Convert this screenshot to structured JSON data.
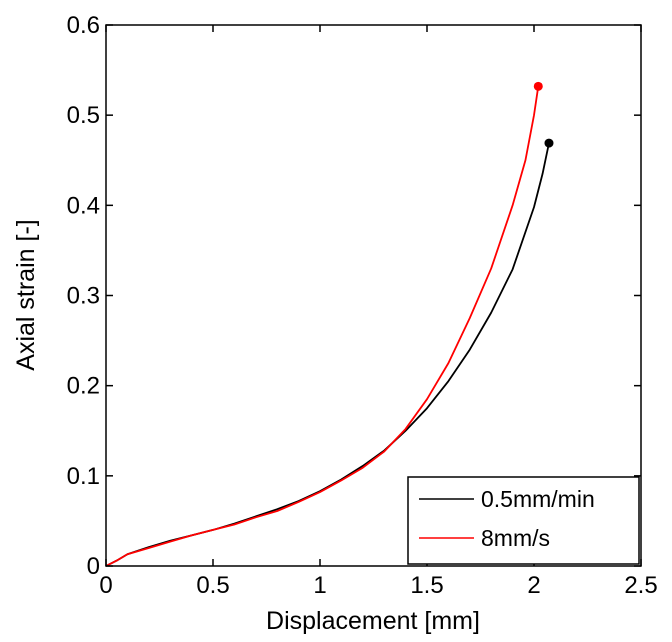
{
  "chart_data": {
    "type": "line",
    "title": "",
    "xlabel": "Displacement [mm]",
    "ylabel": "Axial strain [-]",
    "xlim": [
      0,
      2.5
    ],
    "ylim": [
      0,
      0.6
    ],
    "xticks": [
      "0",
      "0.5",
      "1",
      "1.5",
      "2",
      "2.5"
    ],
    "yticks": [
      "0",
      "0.1",
      "0.2",
      "0.3",
      "0.4",
      "0.5",
      "0.6"
    ],
    "grid": false,
    "legend_position": "bottom-right",
    "series": [
      {
        "name": "0.5mm/min",
        "color": "#000000",
        "endpoint_marker": true,
        "points": [
          [
            0,
            0
          ],
          [
            0.05,
            0.006
          ],
          [
            0.1,
            0.013
          ],
          [
            0.2,
            0.021
          ],
          [
            0.3,
            0.028
          ],
          [
            0.4,
            0.034
          ],
          [
            0.5,
            0.04
          ],
          [
            0.6,
            0.047
          ],
          [
            0.7,
            0.055
          ],
          [
            0.8,
            0.063
          ],
          [
            0.9,
            0.072
          ],
          [
            1.0,
            0.083
          ],
          [
            1.1,
            0.096
          ],
          [
            1.2,
            0.111
          ],
          [
            1.3,
            0.128
          ],
          [
            1.4,
            0.15
          ],
          [
            1.5,
            0.175
          ],
          [
            1.6,
            0.205
          ],
          [
            1.7,
            0.24
          ],
          [
            1.8,
            0.281
          ],
          [
            1.9,
            0.329
          ],
          [
            2.0,
            0.398
          ],
          [
            2.04,
            0.435
          ],
          [
            2.07,
            0.469
          ]
        ]
      },
      {
        "name": "8mm/s",
        "color": "#ff0000",
        "endpoint_marker": true,
        "points": [
          [
            0,
            0
          ],
          [
            0.05,
            0.006
          ],
          [
            0.1,
            0.013
          ],
          [
            0.2,
            0.02
          ],
          [
            0.3,
            0.027
          ],
          [
            0.4,
            0.034
          ],
          [
            0.5,
            0.04
          ],
          [
            0.6,
            0.046
          ],
          [
            0.7,
            0.054
          ],
          [
            0.8,
            0.061
          ],
          [
            0.9,
            0.071
          ],
          [
            1.0,
            0.082
          ],
          [
            1.1,
            0.095
          ],
          [
            1.2,
            0.109
          ],
          [
            1.3,
            0.127
          ],
          [
            1.4,
            0.152
          ],
          [
            1.5,
            0.185
          ],
          [
            1.6,
            0.225
          ],
          [
            1.7,
            0.275
          ],
          [
            1.8,
            0.33
          ],
          [
            1.9,
            0.4
          ],
          [
            1.96,
            0.45
          ],
          [
            2.0,
            0.5
          ],
          [
            2.02,
            0.532
          ]
        ]
      }
    ]
  }
}
